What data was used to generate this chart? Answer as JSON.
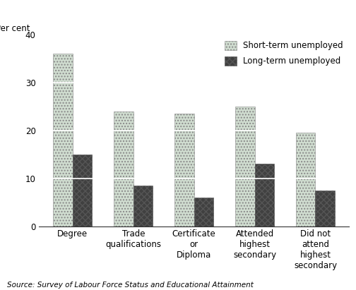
{
  "categories": [
    "Degree",
    "Trade\nqualifications",
    "Certificate\nor\nDiploma",
    "Attended\nhighest\nsecondary",
    "Did not\nattend\nhighest\nsecondary"
  ],
  "short_term": [
    36,
    24,
    23.5,
    25,
    19.5
  ],
  "long_term": [
    15,
    8.5,
    6,
    13,
    7.5
  ],
  "short_term_color": "#d0ddd0",
  "long_term_color": "#404040",
  "ylabel": "Per cent",
  "yticks": [
    0,
    10,
    20,
    30,
    40
  ],
  "ylim": [
    0,
    40
  ],
  "legend_short": "Short-term unemployed",
  "legend_long": "Long-term unemployed",
  "source": "Source: Survey of Labour Force Status and Educational Attainment",
  "bar_width": 0.32,
  "tick_fontsize": 8.5,
  "source_fontsize": 7.5
}
